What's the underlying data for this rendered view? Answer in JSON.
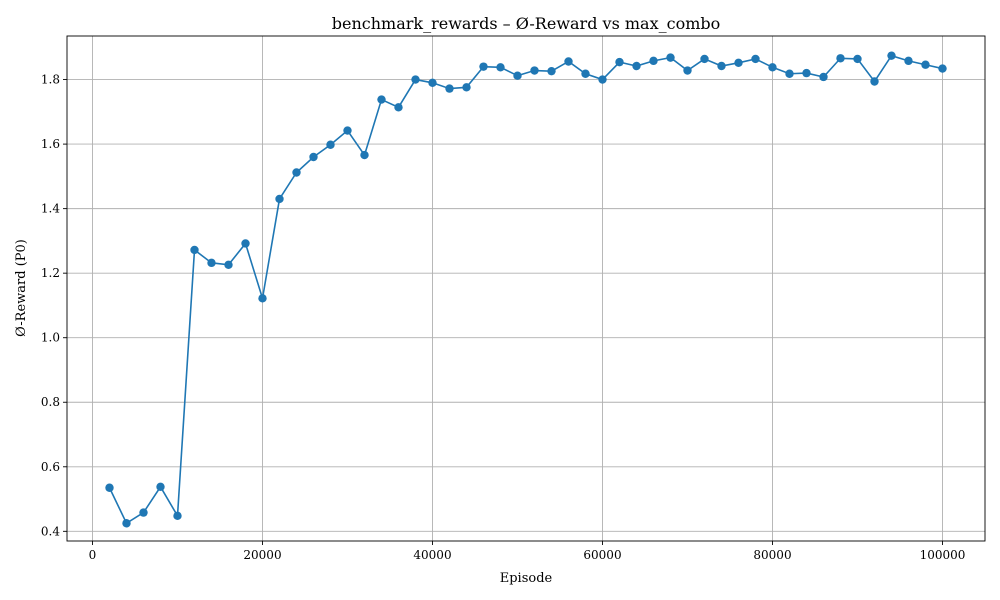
{
  "chart_data": {
    "type": "line",
    "title": "benchmark_rewards – Ø-Reward vs max_combo",
    "xlabel": "Episode",
    "ylabel": "Ø-Reward (P0)",
    "xlim": [
      -3000,
      105000
    ],
    "ylim": [
      0.37,
      1.935
    ],
    "xticks": [
      0,
      20000,
      40000,
      60000,
      80000,
      100000
    ],
    "xtick_labels": [
      "0",
      "20000",
      "40000",
      "60000",
      "80000",
      "100000"
    ],
    "yticks": [
      0.4,
      0.6,
      0.8,
      1.0,
      1.2,
      1.4,
      1.6,
      1.8
    ],
    "ytick_labels": [
      "0.4",
      "0.6",
      "0.8",
      "1.0",
      "1.2",
      "1.4",
      "1.6",
      "1.8"
    ],
    "grid": true,
    "color": "#1f77b4",
    "marker": "circle",
    "x": [
      2000,
      4000,
      6000,
      8000,
      10000,
      12000,
      14000,
      16000,
      18000,
      20000,
      22000,
      24000,
      26000,
      28000,
      30000,
      32000,
      34000,
      36000,
      38000,
      40000,
      42000,
      44000,
      46000,
      48000,
      50000,
      52000,
      54000,
      56000,
      58000,
      60000,
      62000,
      64000,
      66000,
      68000,
      70000,
      72000,
      74000,
      76000,
      78000,
      80000,
      82000,
      84000,
      86000,
      88000,
      90000,
      92000,
      94000,
      96000,
      98000,
      100000
    ],
    "y": [
      0.535,
      0.425,
      0.458,
      0.538,
      0.448,
      1.272,
      1.232,
      1.226,
      1.292,
      1.122,
      1.43,
      1.512,
      1.56,
      1.598,
      1.642,
      1.566,
      1.738,
      1.714,
      1.8,
      1.79,
      1.772,
      1.776,
      1.84,
      1.838,
      1.812,
      1.828,
      1.826,
      1.856,
      1.818,
      1.8,
      1.854,
      1.842,
      1.858,
      1.868,
      1.828,
      1.864,
      1.842,
      1.852,
      1.864,
      1.838,
      1.818,
      1.82,
      1.808,
      1.866,
      1.864,
      1.794,
      1.874,
      1.858,
      1.846,
      1.834
    ]
  }
}
